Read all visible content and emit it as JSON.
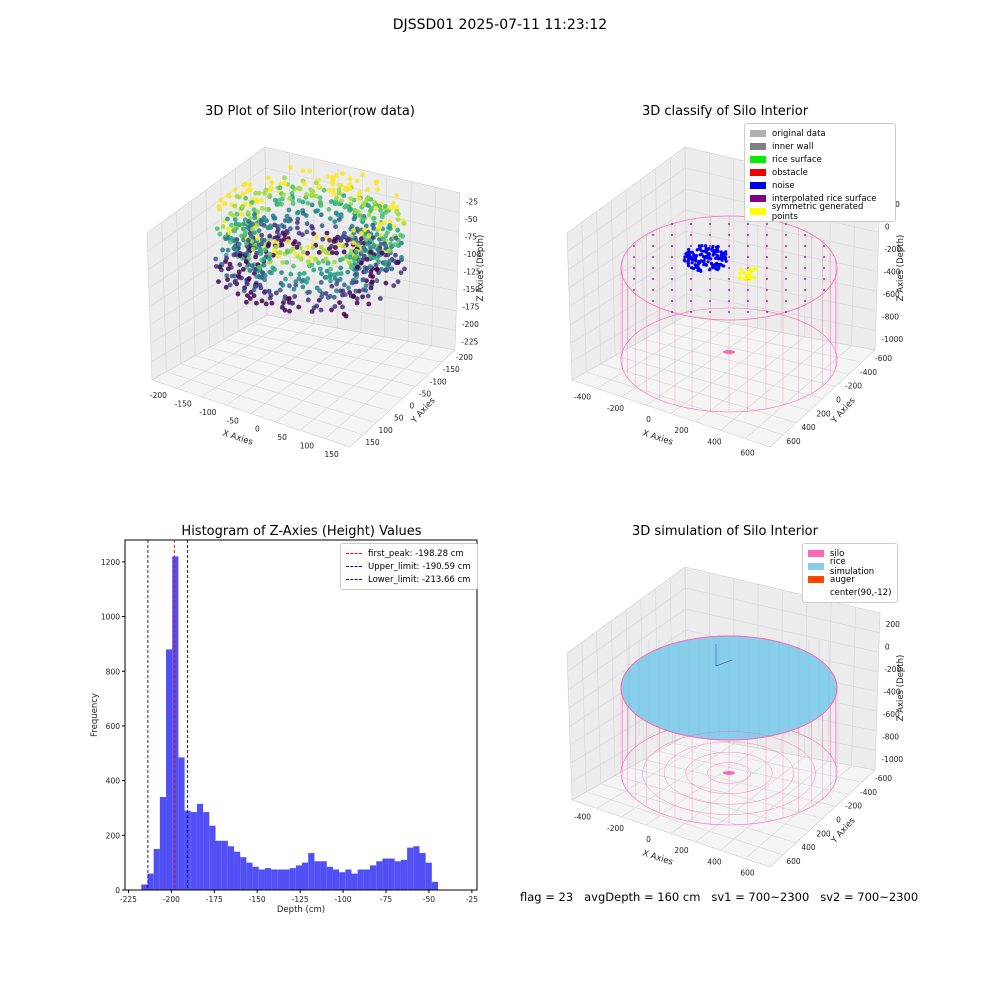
{
  "suptitle": "DJSSD01 2025-07-11 11:23:12",
  "footer": "flag = 23   avgDepth = 160 cm   sv1 = 700~2300   sv2 = 700~2300",
  "chart_data": [
    {
      "type": "scatter",
      "title": "3D Plot of Silo Interior(row data)",
      "xlabel": "X Axies",
      "ylabel": "Y Axies",
      "zlabel": "Z Axies (Depth)",
      "x_ticks": [
        "-200",
        "-150",
        "-100",
        "-50",
        "0",
        "50",
        "100",
        "150"
      ],
      "y_ticks": [
        "-200",
        "-150",
        "-100",
        "-50",
        "0",
        "50",
        "100",
        "150"
      ],
      "z_ticks": [
        "-25",
        "-50",
        "-75",
        "-100",
        "-125",
        "-150",
        "-175",
        "-200",
        "-225"
      ],
      "xlim": [
        -220,
        170
      ],
      "ylim": [
        -200,
        160
      ],
      "zlim": [
        -235,
        -20
      ],
      "colormap": "viridis"
    },
    {
      "type": "scatter",
      "title": "3D classify of Silo Interior",
      "xlabel": "X Axies",
      "ylabel": "Y Axies",
      "zlabel": "Z Axies (Depth)",
      "x_ticks": [
        "-400",
        "-200",
        "0",
        "200",
        "400",
        "600"
      ],
      "y_ticks": [
        "-600",
        "-400",
        "-200",
        "0",
        "200",
        "400",
        "600"
      ],
      "z_ticks": [
        "200",
        "0",
        "-200",
        "-400",
        "-600",
        "-800",
        "-1000"
      ],
      "legend": [
        {
          "label": "original data",
          "color": "#b0b0b0"
        },
        {
          "label": "inner wall",
          "color": "#808080"
        },
        {
          "label": "rice surface",
          "color": "#00ee00"
        },
        {
          "label": "obstacle",
          "color": "#ee0000"
        },
        {
          "label": "noise",
          "color": "#0000ee"
        },
        {
          "label": "interpolated rice surface",
          "color": "#800080"
        },
        {
          "label": "symmetric generated points",
          "color": "#ffff00"
        }
      ]
    },
    {
      "type": "bar",
      "title": "Histogram of Z-Axies (Height) Values",
      "xlabel": "Depth (cm)",
      "ylabel": "Frequency",
      "xlim": [
        -227,
        -22
      ],
      "ylim": [
        0,
        1280
      ],
      "x_ticks": [
        -225,
        -200,
        -175,
        -150,
        -125,
        -100,
        -75,
        -50,
        -25
      ],
      "y_ticks": [
        0,
        200,
        400,
        600,
        800,
        1000,
        1200
      ],
      "bin_edges_start": -217.5,
      "bin_width": 3.6,
      "values": [
        20,
        60,
        150,
        340,
        880,
        1220,
        485,
        290,
        285,
        315,
        285,
        235,
        180,
        180,
        160,
        140,
        120,
        100,
        85,
        75,
        80,
        75,
        75,
        75,
        80,
        90,
        100,
        135,
        105,
        105,
        85,
        75,
        65,
        75,
        60,
        75,
        75,
        90,
        105,
        115,
        115,
        105,
        110,
        155,
        160,
        135,
        100,
        30
      ],
      "bar_color": "#5050f5",
      "lines": [
        {
          "label": "first_peak: -198.28 cm",
          "x": -198.28,
          "color": "#ff0000"
        },
        {
          "label": "Upper_limit: -190.59 cm",
          "x": -190.59,
          "color": "#0000cc"
        },
        {
          "label": "Lower_limit: -213.66 cm",
          "x": -213.66,
          "color": "#0000cc"
        }
      ]
    },
    {
      "type": "scatter",
      "title": "3D simulation of Silo Interior",
      "xlabel": "X Axies",
      "ylabel": "Y Axies",
      "zlabel": "Z Axies (Depth)",
      "x_ticks": [
        "-400",
        "-200",
        "0",
        "200",
        "400",
        "600"
      ],
      "y_ticks": [
        "-600",
        "-400",
        "-200",
        "0",
        "200",
        "400",
        "600"
      ],
      "z_ticks": [
        "200",
        "0",
        "-200",
        "-400",
        "-600",
        "-800",
        "-1000"
      ],
      "legend": [
        {
          "label": "silo",
          "color": "#ff69b4"
        },
        {
          "label": "rice simulation",
          "color": "#87ceeb"
        },
        {
          "label": "auger",
          "color": "#ff4500"
        },
        {
          "label": "center(90,-12)",
          "color": ""
        }
      ]
    }
  ]
}
